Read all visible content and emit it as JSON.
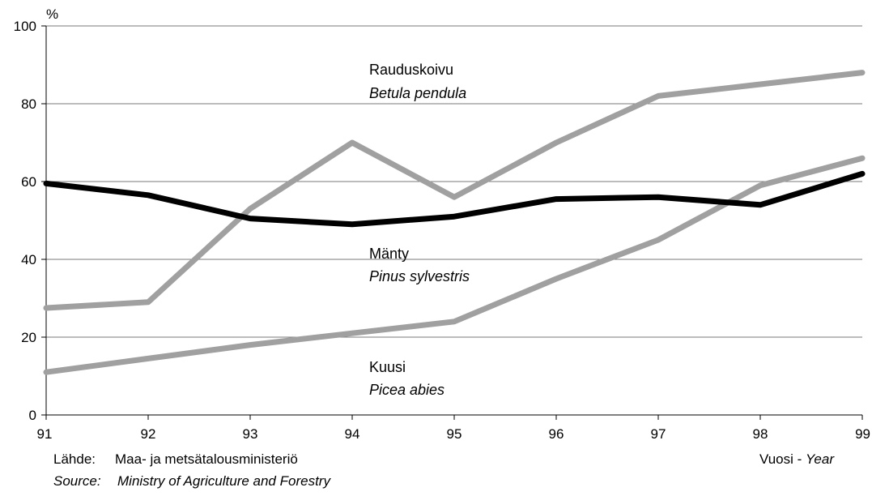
{
  "chart_data": {
    "type": "line",
    "ylabel": "%",
    "xlabel_fi": "Vuosi - ",
    "xlabel_en": "Year",
    "ylim": [
      0,
      100
    ],
    "yticks": [
      0,
      20,
      40,
      60,
      80,
      100
    ],
    "x": [
      "91",
      "92",
      "93",
      "94",
      "95",
      "96",
      "97",
      "98",
      "99"
    ],
    "grid": true,
    "series": [
      {
        "name": "Rauduskoivu",
        "name_latin": "Betula pendula",
        "color": "#a0a0a0",
        "values": [
          27.5,
          29,
          53,
          70,
          56,
          70,
          82,
          85,
          88
        ]
      },
      {
        "name": "Mänty",
        "name_latin": "Pinus sylvestris",
        "color": "#000000",
        "values": [
          59.5,
          56.5,
          50.5,
          49,
          51,
          55.5,
          56,
          54,
          62
        ]
      },
      {
        "name": "Kuusi",
        "name_latin": "Picea abies",
        "color": "#a0a0a0",
        "values": [
          11,
          14.5,
          18,
          21,
          24,
          35,
          45,
          59,
          66
        ]
      }
    ]
  },
  "source": {
    "label_fi": "Lähde:",
    "text_fi": "Maa- ja metsätalousministeriö",
    "label_en": "Source:",
    "text_en": "Ministry of Agriculture and Forestry"
  }
}
